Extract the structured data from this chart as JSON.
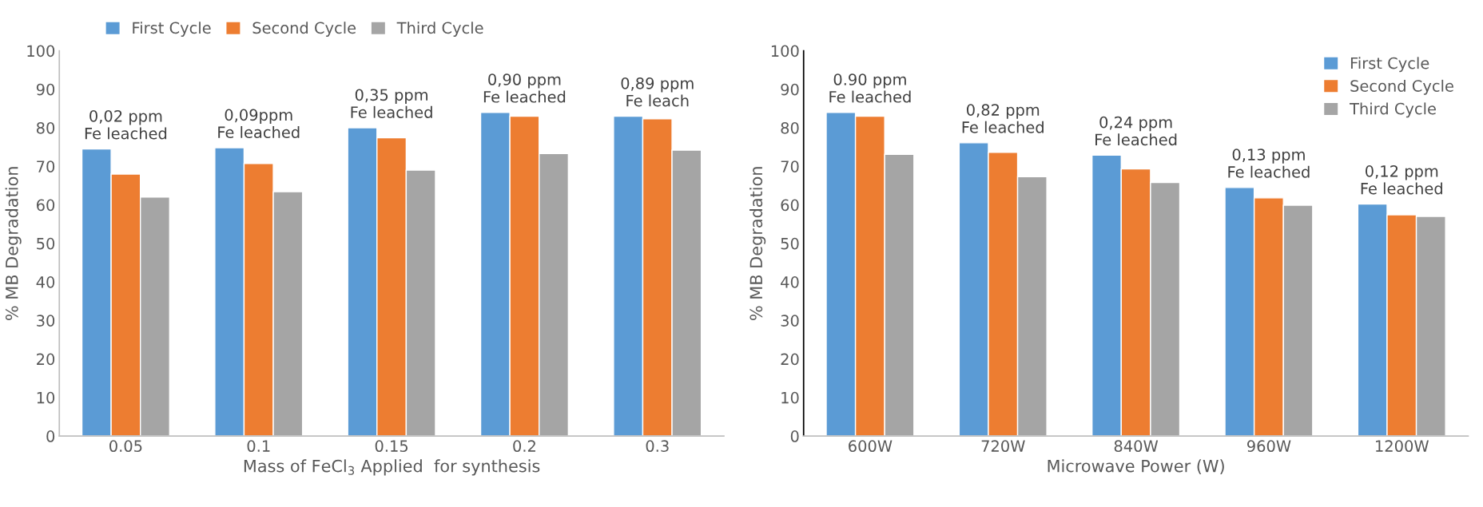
{
  "chart_data": [
    {
      "type": "bar",
      "xlabel": "Mass of FeCl$_{3}$ Applied  for synthesis",
      "ylabel": "% MB Degradation",
      "categories": [
        "0.05",
        "0.1",
        "0.15",
        "0.2",
        "0.3"
      ],
      "series": [
        {
          "name": "First Cycle",
          "color": "#5b9bd5",
          "values": [
            74.5,
            74.8,
            80,
            84,
            83
          ]
        },
        {
          "name": "Second Cycle",
          "color": "#ed7d31",
          "values": [
            68,
            70.7,
            77.4,
            83,
            82.3
          ]
        },
        {
          "name": "Third Cycle",
          "color": "#a5a5a5",
          "values": [
            62,
            63.4,
            69,
            73.3,
            74.2
          ]
        }
      ],
      "ylim": [
        0,
        100
      ],
      "yticks": [
        0,
        10,
        20,
        30,
        40,
        50,
        60,
        70,
        80,
        90,
        100
      ],
      "grid": false,
      "legend": "top",
      "annotations": [
        "0,02 ppm\nFe leached",
        "0,09ppm\nFe leached",
        "0,35 ppm\nFe leached",
        "0,90 ppm\nFe leached",
        "0,89 ppm\nFe leach"
      ]
    },
    {
      "type": "bar",
      "xlabel": "Microwave Power (W)",
      "ylabel": "% MB Degradation",
      "categories": [
        "600W",
        "720W",
        "840W",
        "960W",
        "1200W"
      ],
      "series": [
        {
          "name": "First Cycle",
          "color": "#5b9bd5",
          "values": [
            84,
            76.1,
            72.9,
            64.5,
            60.2
          ]
        },
        {
          "name": "Second Cycle",
          "color": "#ed7d31",
          "values": [
            83,
            73.6,
            69.3,
            61.8,
            57.4
          ]
        },
        {
          "name": "Third Cycle",
          "color": "#a5a5a5",
          "values": [
            73.1,
            67.3,
            65.8,
            59.9,
            57
          ]
        }
      ],
      "ylim": [
        0,
        100
      ],
      "yticks": [
        0,
        10,
        20,
        30,
        40,
        50,
        60,
        70,
        80,
        90,
        100
      ],
      "grid": false,
      "legend": "top right",
      "annotations": [
        "0.90 ppm\nFe leached",
        "0,82 ppm\nFe leached",
        "0,24 ppm\nFe leached",
        "0,13 ppm\nFe leached",
        "0,12 ppm\nFe leached"
      ]
    }
  ]
}
